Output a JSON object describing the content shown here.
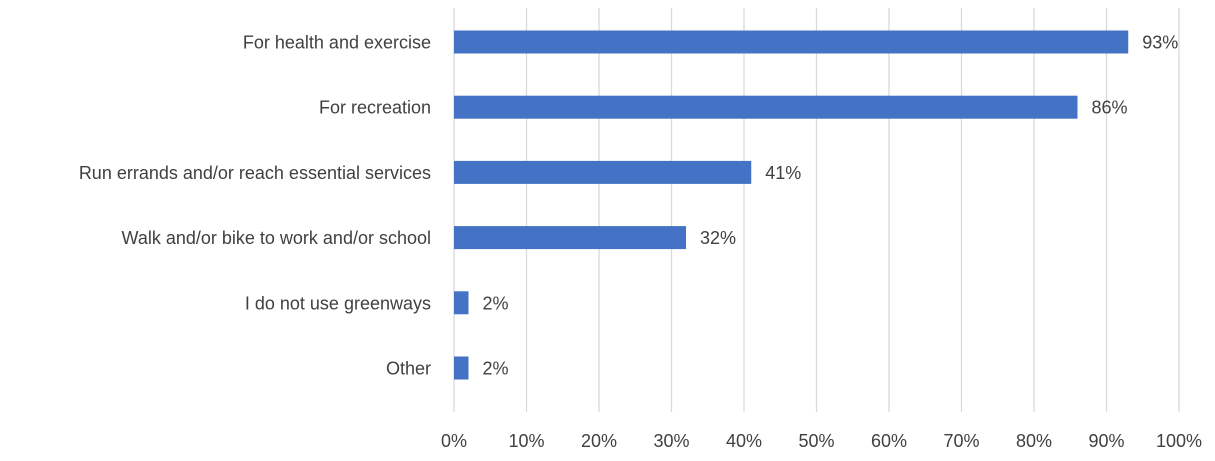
{
  "chart_data": {
    "type": "bar",
    "orientation": "horizontal",
    "categories": [
      "For health and exercise",
      "For recreation",
      "Run errands and/or reach essential services",
      "Walk and/or bike to work and/or school",
      "I do not use greenways",
      "Other"
    ],
    "values": [
      93,
      86,
      41,
      32,
      2,
      2
    ],
    "value_labels": [
      "93%",
      "86%",
      "41%",
      "32%",
      "2%",
      "2%"
    ],
    "x_ticks": [
      "0%",
      "10%",
      "20%",
      "30%",
      "40%",
      "50%",
      "60%",
      "70%",
      "80%",
      "90%",
      "100%"
    ],
    "xlim": [
      0,
      100
    ],
    "grid": "vertical",
    "legend": "none",
    "title": "",
    "xlabel": "",
    "ylabel": "",
    "colors": {
      "bar": "#4472c4",
      "grid": "#d9d9d9",
      "text": "#404040"
    }
  }
}
